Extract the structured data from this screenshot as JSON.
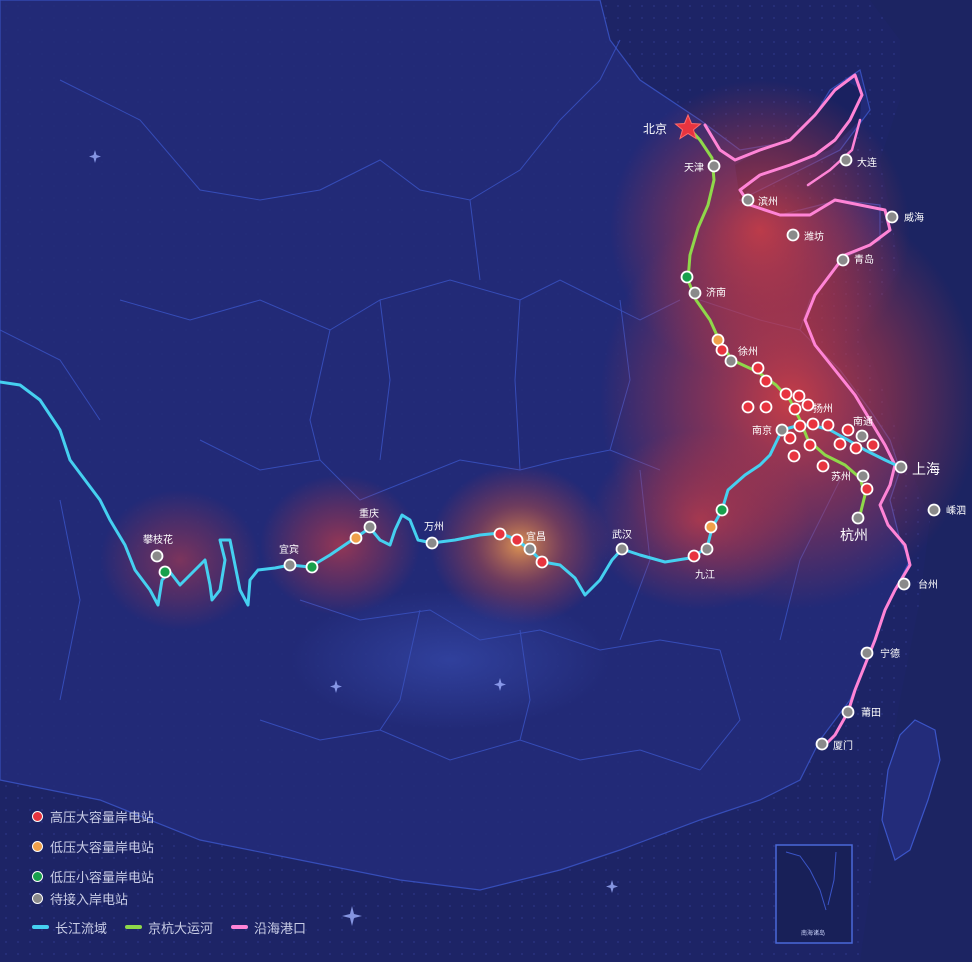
{
  "legend": {
    "stations": [
      {
        "label": "高压大容量岸电站",
        "color": "#e8343f"
      },
      {
        "label": "低压大容量岸电站",
        "color": "#f0a04a"
      },
      {
        "label": "低压小容量岸电站",
        "color": "#18a04c"
      },
      {
        "label": "待接入岸电站",
        "color": "#8a8a8a"
      }
    ],
    "routes": [
      {
        "label": "长江流域",
        "color": "#45d0f0"
      },
      {
        "label": "京杭大运河",
        "color": "#8fd84a"
      },
      {
        "label": "沿海港口",
        "color": "#ff84d6"
      }
    ]
  },
  "cities": {
    "beijing": "北京",
    "tianjin": "天津",
    "dalian": "大连",
    "binzhou": "滨州",
    "weihai": "威海",
    "weifang": "潍坊",
    "qingdao": "青岛",
    "jinan": "济南",
    "xuzhou": "徐州",
    "yangzhou": "扬州",
    "nantong": "南通",
    "nanjing": "南京",
    "suzhou": "苏州",
    "shanghai": "上海",
    "shengsi": "嵊泗",
    "hangzhou": "杭州",
    "taizhou": "台州",
    "ningde": "宁德",
    "putian": "莆田",
    "xiamen": "厦门",
    "jiujiang": "九江",
    "wuhan": "武汉",
    "yichang": "宜昌",
    "wanzhou": "万州",
    "chongqing": "重庆",
    "yibin": "宜宾",
    "panzhihua": "攀枝花"
  },
  "inset_label": "南海诸岛",
  "icons": {
    "capital": "star-icon"
  }
}
